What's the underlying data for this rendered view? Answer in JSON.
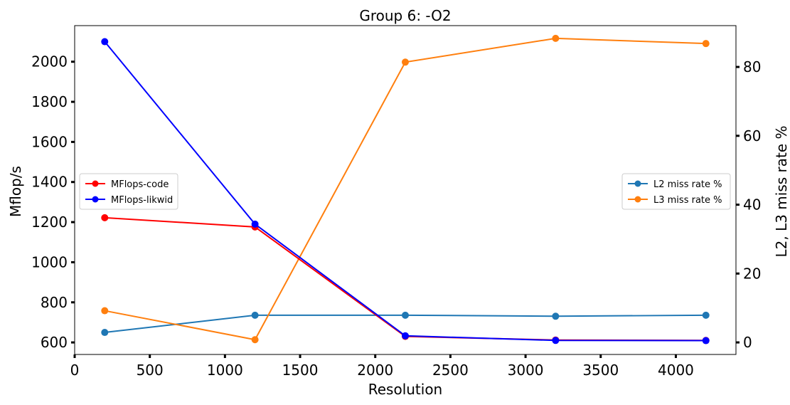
{
  "chart_data": {
    "type": "line",
    "title": "Group 6: -O2",
    "xlabel": "Resolution",
    "ylabel_left": "Mflop/s",
    "ylabel_right": "L2, L3 miss rate %",
    "x": [
      200,
      1200,
      2200,
      3200,
      4200
    ],
    "xlim": [
      0,
      4400
    ],
    "ylim_left": [
      540,
      2180
    ],
    "ylim_right": [
      -3.5,
      92
    ],
    "xticks": [
      0,
      500,
      1000,
      1500,
      2000,
      2500,
      3000,
      3500,
      4000
    ],
    "yticks_left": [
      600,
      800,
      1000,
      1200,
      1400,
      1600,
      1800,
      2000
    ],
    "yticks_right": [
      0,
      20,
      40,
      60,
      80
    ],
    "grid": false,
    "left_legend_placement": "center-left",
    "right_legend_placement": "center-right",
    "left_series": [
      {
        "name": "MFlops-code",
        "color": "#ff0000",
        "values": [
          1222,
          1176,
          630,
          612,
          610
        ]
      },
      {
        "name": "MFlops-likwid",
        "color": "#0000ff",
        "values": [
          2100,
          1190,
          633,
          610,
          609
        ]
      }
    ],
    "right_series": [
      {
        "name": "L2 miss rate %",
        "color": "#1f77b4",
        "values": [
          2.9,
          7.9,
          7.9,
          7.6,
          7.9
        ]
      },
      {
        "name": "L3 miss rate %",
        "color": "#ff7f0e",
        "values": [
          9.2,
          0.8,
          81.4,
          88.3,
          86.8
        ]
      }
    ]
  }
}
